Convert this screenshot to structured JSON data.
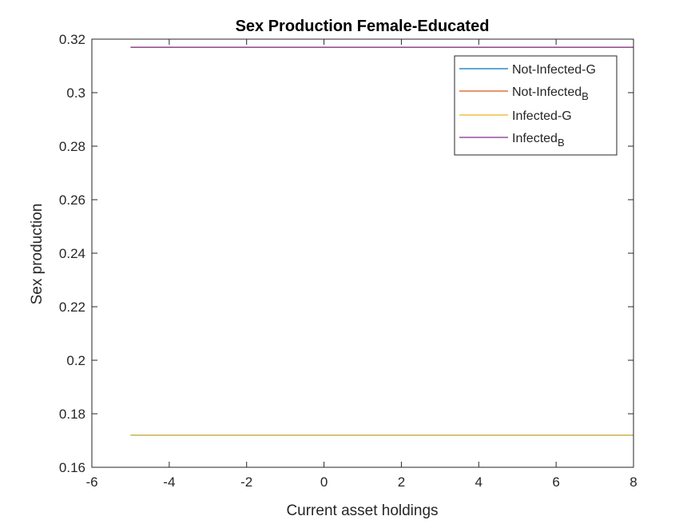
{
  "chart_data": {
    "type": "line",
    "title": "Sex Production Female-Educated",
    "xlabel": "Current asset holdings",
    "ylabel": "Sex production",
    "xlim": [
      -6,
      8
    ],
    "ylim": [
      0.16,
      0.32
    ],
    "xticks": [
      -6,
      -4,
      -2,
      0,
      2,
      4,
      6,
      8
    ],
    "xtick_labels": [
      "-6",
      "-4",
      "-2",
      "0",
      "2",
      "4",
      "6",
      "8"
    ],
    "yticks": [
      0.16,
      0.18,
      0.2,
      0.22,
      0.24,
      0.26,
      0.28,
      0.3,
      0.32
    ],
    "ytick_labels": [
      "0.16",
      "0.18",
      "0.2",
      "0.22",
      "0.24",
      "0.26",
      "0.28",
      "0.3",
      "0.32"
    ],
    "grid": false,
    "legend_position": "top-right",
    "series": [
      {
        "name": "Not-Infected-G",
        "name_main": "Not-Infected-G",
        "name_sub": "",
        "color": "#0072BD",
        "x": [
          -5,
          8
        ],
        "y": [
          0.172,
          0.172
        ]
      },
      {
        "name": "Not-Infected_B",
        "name_main": "Not-Infected",
        "name_sub": "B",
        "color": "#D95319",
        "x": [
          -5,
          8
        ],
        "y": [
          0.317,
          0.317
        ]
      },
      {
        "name": "Infected-G",
        "name_main": "Infected-G",
        "name_sub": "",
        "color": "#EDB120",
        "x": [
          -5,
          8
        ],
        "y": [
          0.172,
          0.172
        ]
      },
      {
        "name": "Infected_B",
        "name_main": "Infected",
        "name_sub": "B",
        "color": "#7E2F8E",
        "x": [
          -5,
          8
        ],
        "y": [
          0.317,
          0.317
        ]
      }
    ]
  }
}
